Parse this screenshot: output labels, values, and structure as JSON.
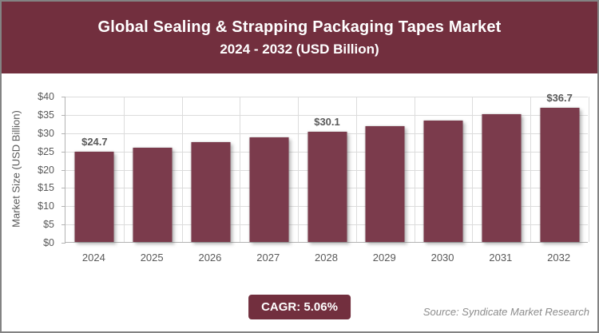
{
  "header": {
    "title": "Global Sealing & Strapping Packaging Tapes Market",
    "subtitle": "2024 - 2032 (USD Billion)"
  },
  "chart_data": {
    "type": "bar",
    "title": "Global Sealing & Strapping Packaging Tapes Market 2024 - 2032 (USD Billion)",
    "categories": [
      "2024",
      "2025",
      "2026",
      "2027",
      "2028",
      "2029",
      "2030",
      "2031",
      "2032"
    ],
    "values": [
      24.7,
      25.9,
      27.3,
      28.6,
      30.1,
      31.6,
      33.2,
      34.9,
      36.7
    ],
    "point_labels": [
      "$24.7",
      "",
      "",
      "",
      "$30.1",
      "",
      "",
      "",
      "$36.7"
    ],
    "xlabel": "",
    "ylabel": "Market Size (USD Billion)",
    "ylim": [
      0,
      40
    ],
    "ytick_step": 5,
    "ytick_prefix": "$",
    "grid": true,
    "legend": "none",
    "bar_color": "#7B3B4C"
  },
  "footer": {
    "cagr_label": "CAGR: 5.06%",
    "source": "Source: Syndicate Market Research"
  },
  "colors": {
    "brand": "#722F3E",
    "bar": "#7B3B4C",
    "gridline": "#DCDCDC",
    "axis": "#B3B3B3",
    "muted_text": "#595959",
    "source_text": "#8C8C8C"
  }
}
